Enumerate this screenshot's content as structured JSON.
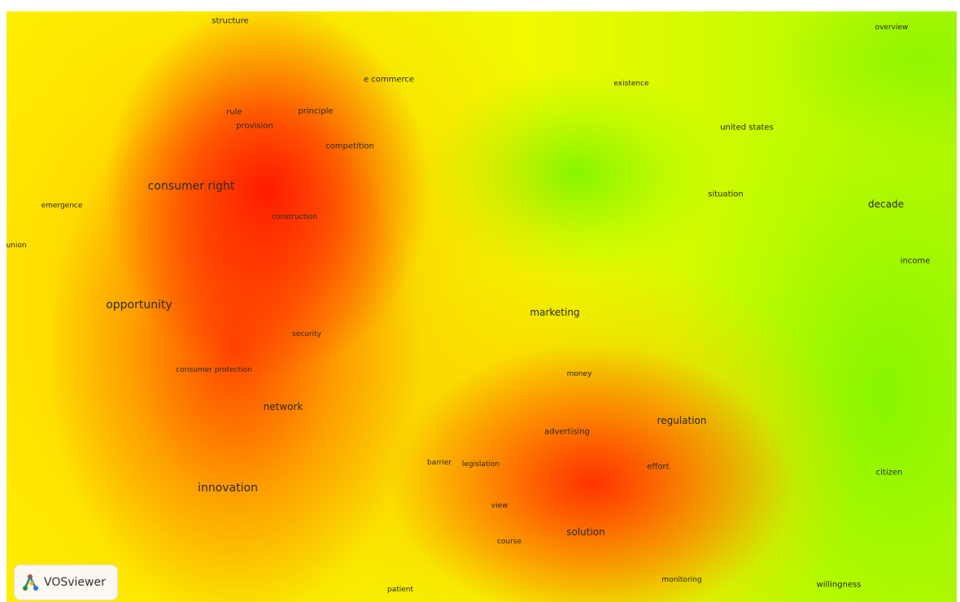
{
  "logo": {
    "label": "VOSviewer"
  },
  "terms": [
    {
      "id": "structure",
      "label": "structure"
    },
    {
      "id": "overview",
      "label": "overview"
    },
    {
      "id": "e-commerce",
      "label": "e commerce"
    },
    {
      "id": "existence",
      "label": "existence"
    },
    {
      "id": "rule",
      "label": "rule"
    },
    {
      "id": "principle",
      "label": "principle"
    },
    {
      "id": "provision",
      "label": "provision"
    },
    {
      "id": "united-states",
      "label": "united states"
    },
    {
      "id": "competition",
      "label": "competition"
    },
    {
      "id": "consumer-right",
      "label": "consumer right"
    },
    {
      "id": "situation",
      "label": "situation"
    },
    {
      "id": "emergence",
      "label": "emergence"
    },
    {
      "id": "decade",
      "label": "decade"
    },
    {
      "id": "construction",
      "label": "construction"
    },
    {
      "id": "union",
      "label": "union"
    },
    {
      "id": "income",
      "label": "income"
    },
    {
      "id": "opportunity",
      "label": "opportunity"
    },
    {
      "id": "marketing",
      "label": "marketing"
    },
    {
      "id": "security",
      "label": "security"
    },
    {
      "id": "consumer-protection",
      "label": "consumer protection"
    },
    {
      "id": "money",
      "label": "money"
    },
    {
      "id": "network",
      "label": "network"
    },
    {
      "id": "regulation",
      "label": "regulation"
    },
    {
      "id": "advertising",
      "label": "advertising"
    },
    {
      "id": "barrier",
      "label": "barrier"
    },
    {
      "id": "legislation",
      "label": "legislation"
    },
    {
      "id": "effort",
      "label": "effort"
    },
    {
      "id": "citizen",
      "label": "citizen"
    },
    {
      "id": "innovation",
      "label": "innovation"
    },
    {
      "id": "view",
      "label": "view"
    },
    {
      "id": "solution",
      "label": "solution"
    },
    {
      "id": "course",
      "label": "course"
    },
    {
      "id": "monitoring",
      "label": "monitoring"
    },
    {
      "id": "willingness",
      "label": "willingness"
    },
    {
      "id": "patient",
      "label": "patient"
    }
  ]
}
